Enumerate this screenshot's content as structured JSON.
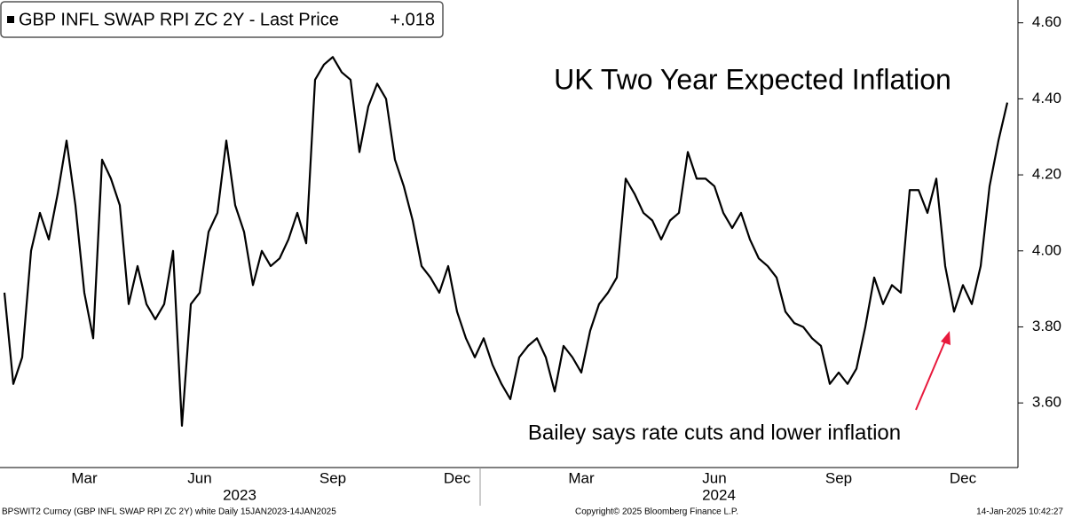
{
  "chart_data": {
    "type": "line",
    "title": "UK Two Year Expected Inflation",
    "title_color": "#e8193c",
    "annotation": "Bailey says rate cuts and lower inflation",
    "legend_value": "+.018",
    "categories": [
      null,
      null,
      null,
      null,
      null,
      null,
      null,
      null,
      null,
      "Mar",
      null,
      null,
      null,
      null,
      null,
      null,
      null,
      null,
      null,
      null,
      null,
      null,
      "Jun",
      null,
      null,
      null,
      null,
      null,
      null,
      null,
      null,
      null,
      null,
      null,
      null,
      null,
      null,
      "Sep",
      null,
      null,
      null,
      null,
      null,
      null,
      null,
      null,
      null,
      null,
      null,
      null,
      null,
      "Dec",
      null,
      null,
      null,
      null,
      null,
      null,
      null,
      null,
      null,
      null,
      null,
      null,
      null,
      "Mar",
      null,
      null,
      null,
      null,
      null,
      null,
      null,
      null,
      null,
      null,
      null,
      null,
      null,
      null,
      "Jun",
      null,
      null,
      null,
      null,
      null,
      null,
      null,
      null,
      null,
      null,
      null,
      null,
      null,
      "Sep",
      null,
      null,
      null,
      null,
      null,
      null,
      null,
      null,
      null,
      null,
      null,
      null,
      null,
      "Dec",
      null,
      null,
      null,
      null,
      null
    ],
    "year_labels": [
      "2023",
      "2024"
    ],
    "series": [
      {
        "name": "GBP INFL SWAP RPI ZC 2Y - Last Price",
        "color": "#000000",
        "values": [
          3.89,
          3.65,
          3.72,
          4.0,
          4.1,
          4.03,
          4.15,
          4.29,
          4.12,
          3.89,
          3.77,
          4.24,
          4.19,
          4.12,
          3.86,
          3.96,
          3.86,
          3.82,
          3.86,
          4.0,
          3.54,
          3.86,
          3.89,
          4.05,
          4.1,
          4.29,
          4.12,
          4.05,
          3.91,
          4.0,
          3.96,
          3.98,
          4.03,
          4.1,
          4.02,
          4.45,
          4.49,
          4.51,
          4.47,
          4.45,
          4.26,
          4.38,
          4.44,
          4.4,
          4.24,
          4.17,
          4.08,
          3.96,
          3.93,
          3.89,
          3.96,
          3.84,
          3.77,
          3.72,
          3.77,
          3.7,
          3.65,
          3.61,
          3.72,
          3.75,
          3.77,
          3.72,
          3.63,
          3.75,
          3.72,
          3.68,
          3.79,
          3.86,
          3.89,
          3.93,
          4.19,
          4.15,
          4.1,
          4.08,
          4.03,
          4.08,
          4.1,
          4.26,
          4.19,
          4.19,
          4.17,
          4.1,
          4.06,
          4.1,
          4.03,
          3.98,
          3.96,
          3.93,
          3.84,
          3.81,
          3.8,
          3.77,
          3.75,
          3.65,
          3.68,
          3.65,
          3.69,
          3.8,
          3.93,
          3.86,
          3.91,
          3.89,
          4.16,
          4.16,
          4.1,
          4.19,
          3.96,
          3.84,
          3.91,
          3.86,
          3.96,
          4.17,
          4.29,
          4.39
        ]
      }
    ],
    "ylim": [
      3.43,
      4.66
    ],
    "yticks": [
      {
        "value": 3.6,
        "label": "3.60"
      },
      {
        "value": 3.8,
        "label": "3.80"
      },
      {
        "value": 4.0,
        "label": "4.00"
      },
      {
        "value": 4.2,
        "label": "4.20"
      },
      {
        "value": 4.4,
        "label": "4.40"
      },
      {
        "value": 4.6,
        "label": "4.60"
      }
    ],
    "footer": {
      "left": "BPSWIT2 Curncy (GBP INFL SWAP RPI ZC 2Y) white  Daily 15JAN2023-14JAN2025",
      "center": "Copyright© 2025 Bloomberg Finance L.P.",
      "right": "14-Jan-2025 10:42:27"
    }
  }
}
